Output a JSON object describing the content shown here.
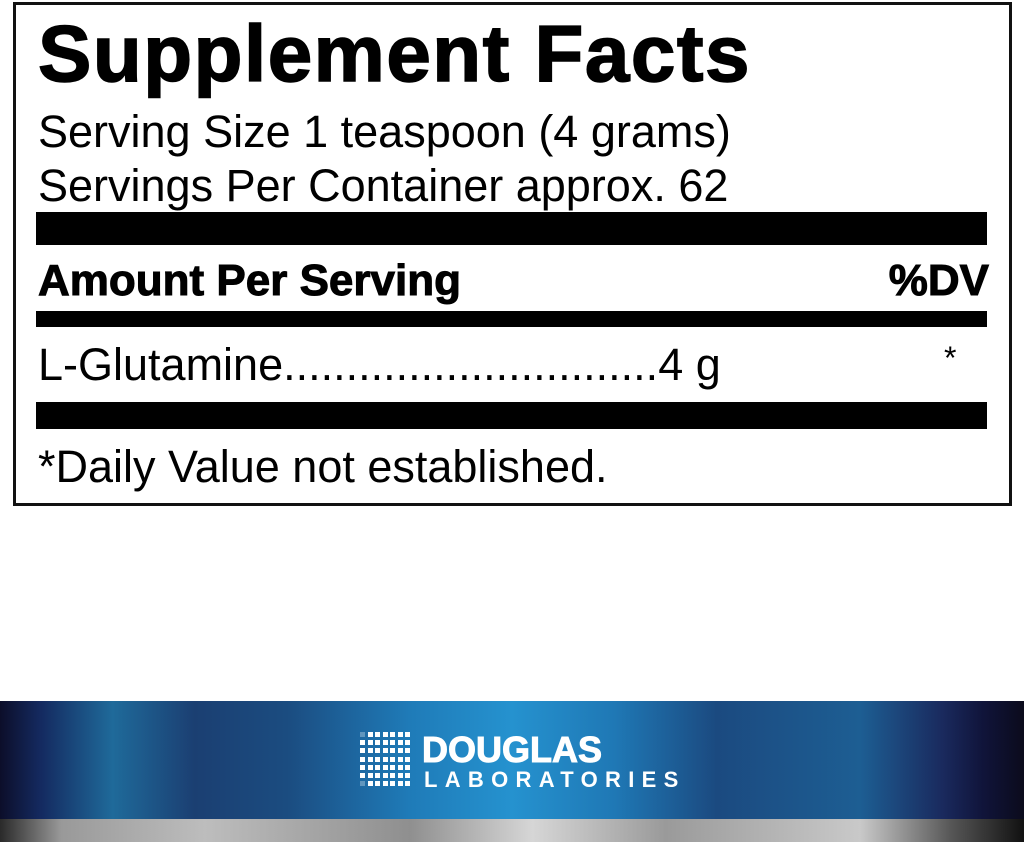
{
  "label": {
    "title": "Supplement Facts",
    "serving_size": "Serving Size 1 teaspoon (4 grams)",
    "servings_per_container": "Servings Per Container approx. 62",
    "header": {
      "amount": "Amount Per Serving",
      "dv": "%DV"
    },
    "rows": [
      {
        "name": "L-Glutamine",
        "leader": "..............................",
        "amount": "4 g",
        "dv": "*"
      }
    ],
    "footnote": "*Daily Value not established."
  },
  "brand": {
    "name": "DOUGLAS",
    "sub": "LABORATORIES",
    "colors": {
      "band_blue": "#2590cc",
      "band_dark": "#0c0e2a",
      "silver": "#bdbdbd"
    }
  }
}
